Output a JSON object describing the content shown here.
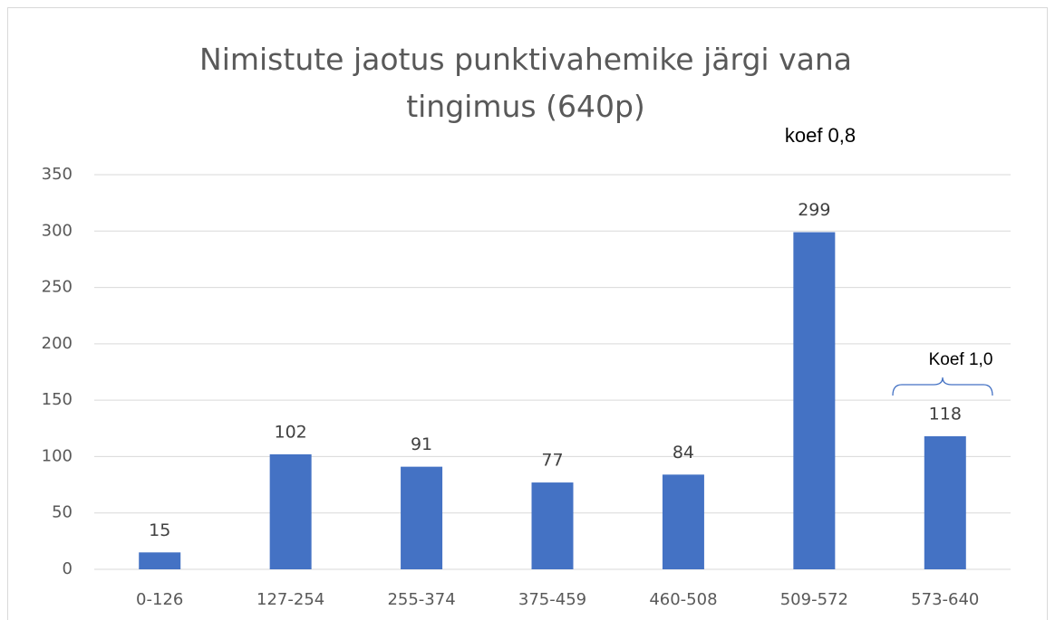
{
  "chart_data": {
    "type": "bar",
    "title": "Nimistute jaotus punktivahemike järgi vana tingimus (640p)",
    "categories": [
      "0-126",
      "127-254",
      "255-374",
      "375-459",
      "460-508",
      "509-572",
      "573-640"
    ],
    "values": [
      15,
      102,
      91,
      77,
      84,
      299,
      118
    ],
    "color": "#4472c4",
    "ylim": [
      0,
      350
    ],
    "yticks": [
      0,
      50,
      100,
      150,
      200,
      250,
      300,
      350
    ],
    "grid": true,
    "annotations": [
      "koef 0,8",
      "Koef 1,0"
    ]
  }
}
